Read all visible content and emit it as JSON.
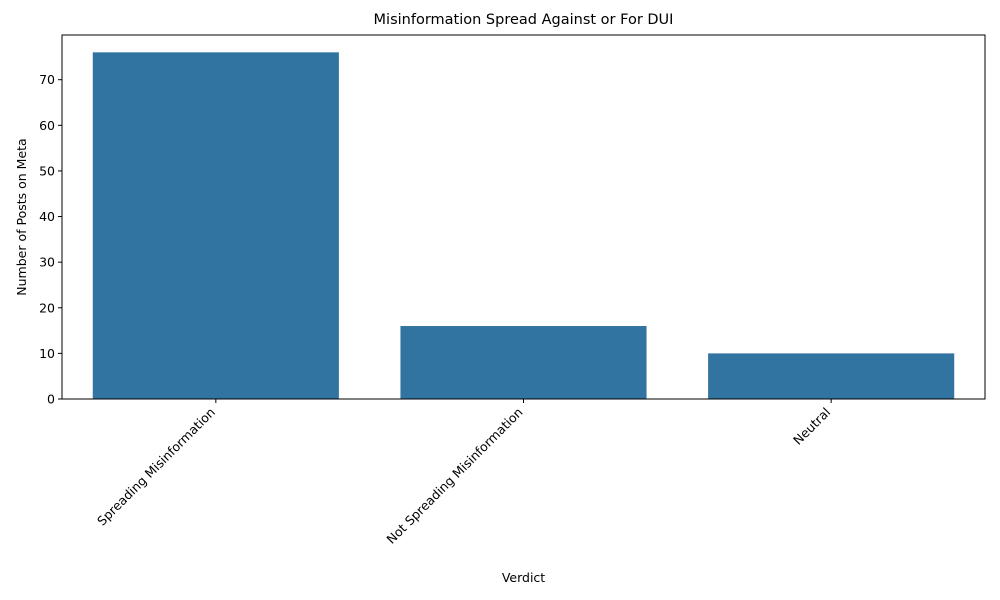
{
  "chart_data": {
    "type": "bar",
    "title": "Misinformation Spread Against or For DUI",
    "xlabel": "Verdict",
    "ylabel": "Number of Posts on Meta",
    "categories": [
      "Spreading Misinformation",
      "Not Spreading Misinformation",
      "Neutral"
    ],
    "values": [
      76,
      16,
      10
    ],
    "ylim": [
      0,
      79.8
    ],
    "yticks": [
      0,
      10,
      20,
      30,
      40,
      50,
      60,
      70
    ],
    "grid": false,
    "colors": {
      "bar": "#3274a1",
      "axis": "#000000"
    }
  }
}
